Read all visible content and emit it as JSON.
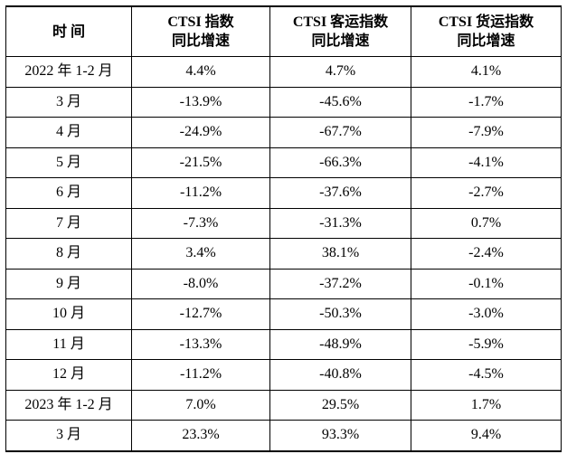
{
  "table": {
    "headers": [
      {
        "lines": [
          "时 间"
        ]
      },
      {
        "lines": [
          "CTSI 指数",
          "同比增速"
        ]
      },
      {
        "lines": [
          "CTSI 客运指数",
          "同比增速"
        ]
      },
      {
        "lines": [
          "CTSI 货运指数",
          "同比增速"
        ]
      }
    ],
    "rows": [
      [
        "2022 年 1-2 月",
        "4.4%",
        "4.7%",
        "4.1%"
      ],
      [
        "3 月",
        "-13.9%",
        "-45.6%",
        "-1.7%"
      ],
      [
        "4 月",
        "-24.9%",
        "-67.7%",
        "-7.9%"
      ],
      [
        "5 月",
        "-21.5%",
        "-66.3%",
        "-4.1%"
      ],
      [
        "6 月",
        "-11.2%",
        "-37.6%",
        "-2.7%"
      ],
      [
        "7 月",
        "-7.3%",
        "-31.3%",
        "0.7%"
      ],
      [
        "8 月",
        "3.4%",
        "38.1%",
        "-2.4%"
      ],
      [
        "9 月",
        "-8.0%",
        "-37.2%",
        "-0.1%"
      ],
      [
        "10 月",
        "-12.7%",
        "-50.3%",
        "-3.0%"
      ],
      [
        "11 月",
        "-13.3%",
        "-48.9%",
        "-5.9%"
      ],
      [
        "12 月",
        "-11.2%",
        "-40.8%",
        "-4.5%"
      ],
      [
        "2023 年 1-2 月",
        "7.0%",
        "29.5%",
        "1.7%"
      ],
      [
        "3 月",
        "23.3%",
        "93.3%",
        "9.4%"
      ]
    ]
  }
}
